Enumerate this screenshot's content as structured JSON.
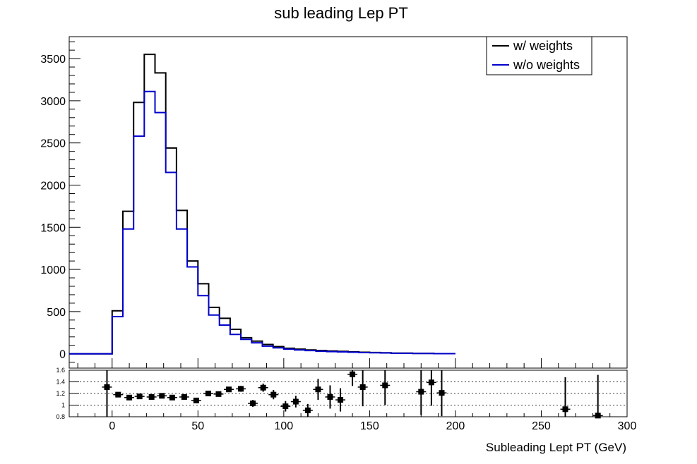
{
  "chart_data": [
    {
      "type": "line",
      "title": "sub leading Lep PT",
      "xlabel": "",
      "ylabel": "",
      "xlim": [
        -25,
        300
      ],
      "ylim": [
        -170,
        3760
      ],
      "yticks": [
        "0",
        "500",
        "1000",
        "1500",
        "2000",
        "2500",
        "3000",
        "3500"
      ],
      "bin_edges": [
        -25,
        0,
        6.25,
        12.5,
        18.75,
        25,
        31.25,
        37.5,
        43.75,
        50,
        56.25,
        62.5,
        68.75,
        75,
        81.25,
        87.5,
        93.75,
        100,
        106.25,
        112.5,
        118.75,
        125,
        131.25,
        137.5,
        143.75,
        150,
        156.25,
        162.5,
        175,
        187.5,
        200,
        300
      ],
      "legend": {
        "position": "top-right",
        "entries": [
          "w/ weights",
          "w/o weights"
        ]
      },
      "series": [
        {
          "name": "w/ weights",
          "color": "#000000",
          "values": [
            0,
            510,
            1690,
            2980,
            3550,
            3330,
            2440,
            1700,
            1100,
            830,
            550,
            420,
            290,
            190,
            150,
            110,
            85,
            65,
            55,
            45,
            38,
            32,
            28,
            22,
            18,
            15,
            12,
            8,
            5,
            1
          ]
        },
        {
          "name": "w/o weights",
          "color": "#0000cc",
          "values": [
            0,
            440,
            1480,
            2580,
            3110,
            2860,
            2150,
            1480,
            1030,
            690,
            460,
            340,
            230,
            170,
            130,
            90,
            70,
            55,
            45,
            38,
            30,
            26,
            22,
            18,
            14,
            12,
            10,
            6,
            4,
            1
          ]
        }
      ]
    },
    {
      "type": "scatter",
      "title": "",
      "xlabel": "Subleading Lept PT (GeV)",
      "ylabel": "",
      "xlim": [
        -25,
        300
      ],
      "ylim": [
        0.8,
        1.6
      ],
      "xticks": [
        "0",
        "50",
        "100",
        "150",
        "200",
        "250",
        "300"
      ],
      "yticks": [
        "0.8",
        "1",
        "1.2",
        "1.4",
        "1.6"
      ],
      "grid": "horizontal dotted",
      "points": [
        {
          "x": -3,
          "y": 1.31,
          "err": 0.55
        },
        {
          "x": 3.5,
          "y": 1.18,
          "err": 0.03
        },
        {
          "x": 10,
          "y": 1.13,
          "err": 0.02
        },
        {
          "x": 16,
          "y": 1.15,
          "err": 0.02
        },
        {
          "x": 23,
          "y": 1.14,
          "err": 0.02
        },
        {
          "x": 29,
          "y": 1.16,
          "err": 0.02
        },
        {
          "x": 35,
          "y": 1.13,
          "err": 0.02
        },
        {
          "x": 42,
          "y": 1.14,
          "err": 0.03
        },
        {
          "x": 49,
          "y": 1.08,
          "err": 0.03
        },
        {
          "x": 56,
          "y": 1.2,
          "err": 0.03
        },
        {
          "x": 62,
          "y": 1.19,
          "err": 0.04
        },
        {
          "x": 68,
          "y": 1.27,
          "err": 0.04
        },
        {
          "x": 75,
          "y": 1.28,
          "err": 0.05
        },
        {
          "x": 82,
          "y": 1.03,
          "err": 0.06
        },
        {
          "x": 88,
          "y": 1.3,
          "err": 0.07
        },
        {
          "x": 94,
          "y": 1.18,
          "err": 0.08
        },
        {
          "x": 101,
          "y": 0.98,
          "err": 0.09
        },
        {
          "x": 107,
          "y": 1.06,
          "err": 0.1
        },
        {
          "x": 114,
          "y": 0.91,
          "err": 0.11
        },
        {
          "x": 120,
          "y": 1.27,
          "err": 0.18
        },
        {
          "x": 127,
          "y": 1.14,
          "err": 0.2
        },
        {
          "x": 133,
          "y": 1.09,
          "err": 0.2
        },
        {
          "x": 140,
          "y": 1.53,
          "err": 0.2
        },
        {
          "x": 146,
          "y": 1.31,
          "err": 0.33
        },
        {
          "x": 159,
          "y": 1.34,
          "err": 0.34
        },
        {
          "x": 180,
          "y": 1.23,
          "err": 0.4
        },
        {
          "x": 186,
          "y": 1.39,
          "err": 0.4
        },
        {
          "x": 192,
          "y": 1.21,
          "err": 0.4
        },
        {
          "x": 264,
          "y": 0.93,
          "err": 0.55
        },
        {
          "x": 283,
          "y": 0.82,
          "err": 0.7
        }
      ]
    }
  ]
}
